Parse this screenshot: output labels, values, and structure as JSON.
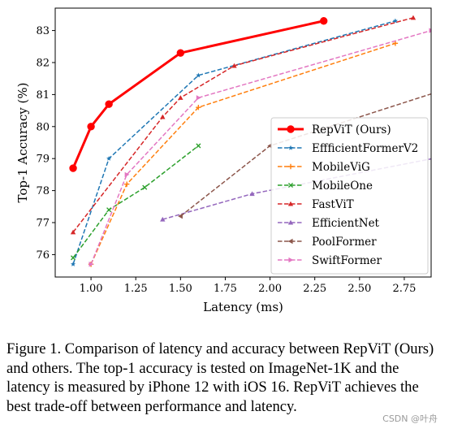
{
  "chart_data": {
    "type": "line",
    "title": "",
    "xlabel": "Latency (ms)",
    "ylabel": "Top-1 Accuracy (%)",
    "xlim": [
      0.8,
      2.9
    ],
    "ylim": [
      75.3,
      83.7
    ],
    "x_ticks": [
      "1.00",
      "1.25",
      "1.50",
      "1.75",
      "2.00",
      "2.25",
      "2.50",
      "2.75"
    ],
    "x_tick_values": [
      1.0,
      1.25,
      1.5,
      1.75,
      2.0,
      2.25,
      2.5,
      2.75
    ],
    "y_ticks": [
      "76",
      "77",
      "78",
      "79",
      "80",
      "81",
      "82",
      "83"
    ],
    "y_tick_values": [
      76,
      77,
      78,
      79,
      80,
      81,
      82,
      83
    ],
    "grid": false,
    "legend_position": "center-right",
    "series": [
      {
        "name": "RepViT (Ours)",
        "color": "#ff0000",
        "marker": "circle",
        "style": "solid",
        "x": [
          0.9,
          1.0,
          1.1,
          1.5,
          2.3
        ],
        "y": [
          78.7,
          80.0,
          80.7,
          82.3,
          83.3
        ]
      },
      {
        "name": "EffficientFormerV2",
        "color": "#1f77b4",
        "marker": "star",
        "style": "dashed",
        "x": [
          0.9,
          1.1,
          1.6,
          2.7
        ],
        "y": [
          75.7,
          79.0,
          81.6,
          83.3
        ]
      },
      {
        "name": "MobileViG",
        "color": "#ff7f0e",
        "marker": "plus",
        "style": "dashed",
        "x": [
          1.0,
          1.2,
          1.6,
          2.7
        ],
        "y": [
          75.7,
          78.2,
          80.6,
          82.6
        ]
      },
      {
        "name": "MobileOne",
        "color": "#2ca02c",
        "marker": "x",
        "style": "dashed",
        "x": [
          0.9,
          1.1,
          1.3,
          1.6
        ],
        "y": [
          75.9,
          77.4,
          78.1,
          79.4
        ]
      },
      {
        "name": "FastViT",
        "color": "#d62728",
        "marker": "triangle-up",
        "style": "dashed",
        "x": [
          0.9,
          1.4,
          1.5,
          1.8,
          2.8
        ],
        "y": [
          76.7,
          80.3,
          80.9,
          81.9,
          83.4
        ]
      },
      {
        "name": "EfficientNet",
        "color": "#9467bd",
        "marker": "triangle-up",
        "style": "dashed",
        "x": [
          1.4,
          1.9,
          3.0
        ],
        "y": [
          77.1,
          77.9,
          79.1
        ]
      },
      {
        "name": "PoolFormer",
        "color": "#8c564b",
        "marker": "triangle-left",
        "style": "dashed",
        "x": [
          1.5,
          2.0,
          3.0
        ],
        "y": [
          77.2,
          79.4,
          81.2
        ]
      },
      {
        "name": "SwiftFormer",
        "color": "#e377c2",
        "marker": "triangle-right",
        "style": "dashed",
        "x": [
          1.0,
          1.2,
          1.6,
          2.9
        ],
        "y": [
          75.7,
          78.5,
          80.9,
          83.0
        ]
      }
    ]
  },
  "caption": "Figure 1. Comparison of latency and accuracy between RepViT (Ours) and others. The top-1 accuracy is tested on ImageNet-1K and the latency is measured by iPhone 12 with iOS 16. RepViT achieves the best trade-off between performance and latency.",
  "watermark": "CSDN @叶舟"
}
